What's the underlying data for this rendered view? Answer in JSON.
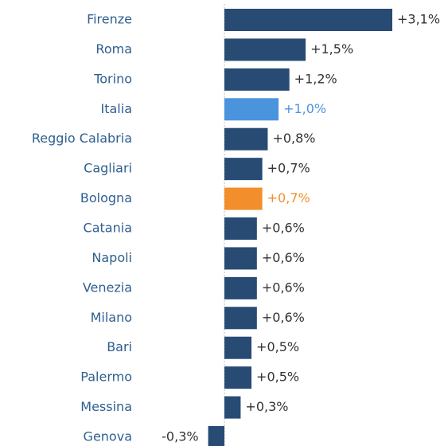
{
  "chart_data": {
    "type": "bar",
    "orientation": "horizontal",
    "categories": [
      "Firenze",
      "Roma",
      "Torino",
      "Italia",
      "Reggio Calabria",
      "Cagliari",
      "Bologna",
      "Catania",
      "Napoli",
      "Venezia",
      "Milano",
      "Bari",
      "Palermo",
      "Messina",
      "Genova"
    ],
    "values": [
      3.1,
      1.5,
      1.2,
      1.0,
      0.8,
      0.7,
      0.7,
      0.6,
      0.6,
      0.6,
      0.6,
      0.5,
      0.5,
      0.3,
      -0.3
    ],
    "value_labels": [
      "+3,1%",
      "+1,5%",
      "+1,2%",
      "+1,0%",
      "+0,8%",
      "+0,7%",
      "+0,7%",
      "+0,6%",
      "+0,6%",
      "+0,6%",
      "+0,6%",
      "+0,5%",
      "+0,5%",
      "+0,3%",
      "-0,3%"
    ],
    "color": "#284b74",
    "colors": [
      "#284b74",
      "#284b74",
      "#284b74",
      "#4a94dd",
      "#284b74",
      "#284b74",
      "#f28e2b",
      "#284b74",
      "#284b74",
      "#284b74",
      "#284b74",
      "#284b74",
      "#284b74",
      "#284b74",
      "#284b74"
    ]
  }
}
